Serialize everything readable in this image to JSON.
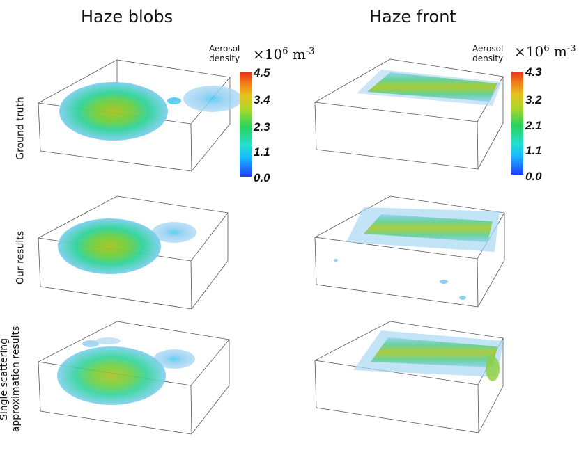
{
  "columns": [
    "Haze blobs",
    "Haze front"
  ],
  "rows": [
    "Ground truth",
    "Our results",
    "Single scattering",
    "approximation results"
  ],
  "colorbars": [
    {
      "label_line1": "Aerosol",
      "label_line2": "density",
      "unit_base": "×10",
      "unit_exp": "6",
      "unit_m": "m",
      "unit_m_exp": "-3",
      "ticks": [
        "4.5",
        "3.4",
        "2.3",
        "1.1",
        "0.0"
      ]
    },
    {
      "label_line1": "Aerosol",
      "label_line2": "density",
      "unit_base": "×10",
      "unit_exp": "6",
      "unit_m": "m",
      "unit_m_exp": "-3",
      "ticks": [
        "4.3",
        "3.2",
        "2.1",
        "1.1",
        "0.0"
      ]
    }
  ],
  "colors": {
    "high": "#e8301c",
    "mid": "#2ad35a",
    "low": "#1f3cff",
    "box": "#555555"
  }
}
